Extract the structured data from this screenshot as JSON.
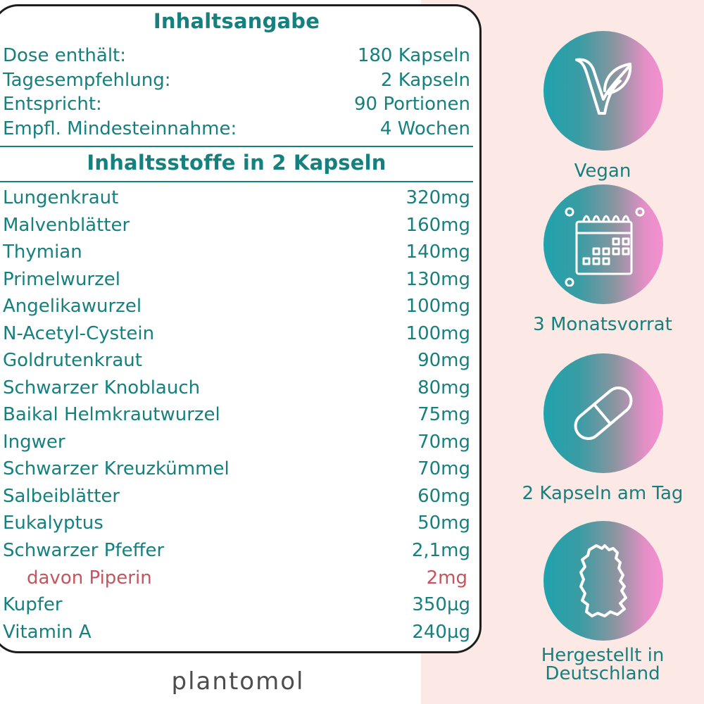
{
  "title_summary": "Inhaltsangabe",
  "summary": [
    {
      "label": "Dose enthält:",
      "value": "180 Kapseln"
    },
    {
      "label": "Tagesempfehlung:",
      "value": "2 Kapseln"
    },
    {
      "label": "Entspricht:",
      "value": "90 Portionen"
    },
    {
      "label": "Empfl. Mindesteinnahme:",
      "value": "4 Wochen"
    }
  ],
  "title_ingredients": "Inhaltsstoffe in 2 Kapseln",
  "ingredients": [
    {
      "name": "Lungenkraut",
      "amount": "320mg"
    },
    {
      "name": "Malvenblätter",
      "amount": "160mg"
    },
    {
      "name": "Thymian",
      "amount": "140mg"
    },
    {
      "name": "Primelwurzel",
      "amount": "130mg"
    },
    {
      "name": "Angelikawurzel",
      "amount": "100mg"
    },
    {
      "name": "N-Acetyl-Cystein",
      "amount": "100mg"
    },
    {
      "name": "Goldrutenkraut",
      "amount": "90mg"
    },
    {
      "name": "Schwarzer Knoblauch",
      "amount": "80mg"
    },
    {
      "name": "Baikal Helmkrautwurzel",
      "amount": "75mg"
    },
    {
      "name": "Ingwer",
      "amount": "70mg"
    },
    {
      "name": "Schwarzer Kreuzkümmel",
      "amount": "70mg"
    },
    {
      "name": "Salbeiblätter",
      "amount": "60mg"
    },
    {
      "name": "Eukalyptus",
      "amount": "50mg"
    },
    {
      "name": "Schwarzer Pfeffer",
      "amount": "2,1mg"
    },
    {
      "name": "davon Piperin",
      "amount": "2mg"
    },
    {
      "name": "Kupfer",
      "amount": "350µg"
    },
    {
      "name": "Vitamin A",
      "amount": "240µg"
    }
  ],
  "brand": "plantomol",
  "features": [
    {
      "label": "Vegan",
      "icon": "vegan-leaf-icon"
    },
    {
      "label": "3 Monatsvorrat",
      "icon": "calendar-icon"
    },
    {
      "label": "2 Kapseln am Tag",
      "icon": "capsule-icon"
    },
    {
      "label_line1": "Hergestellt in",
      "label_line2": "Deutschland",
      "icon": "germany-map-icon"
    }
  ],
  "colors": {
    "accent": "#16807e",
    "highlight": "#c7545c",
    "panel": "#fce9e5"
  }
}
